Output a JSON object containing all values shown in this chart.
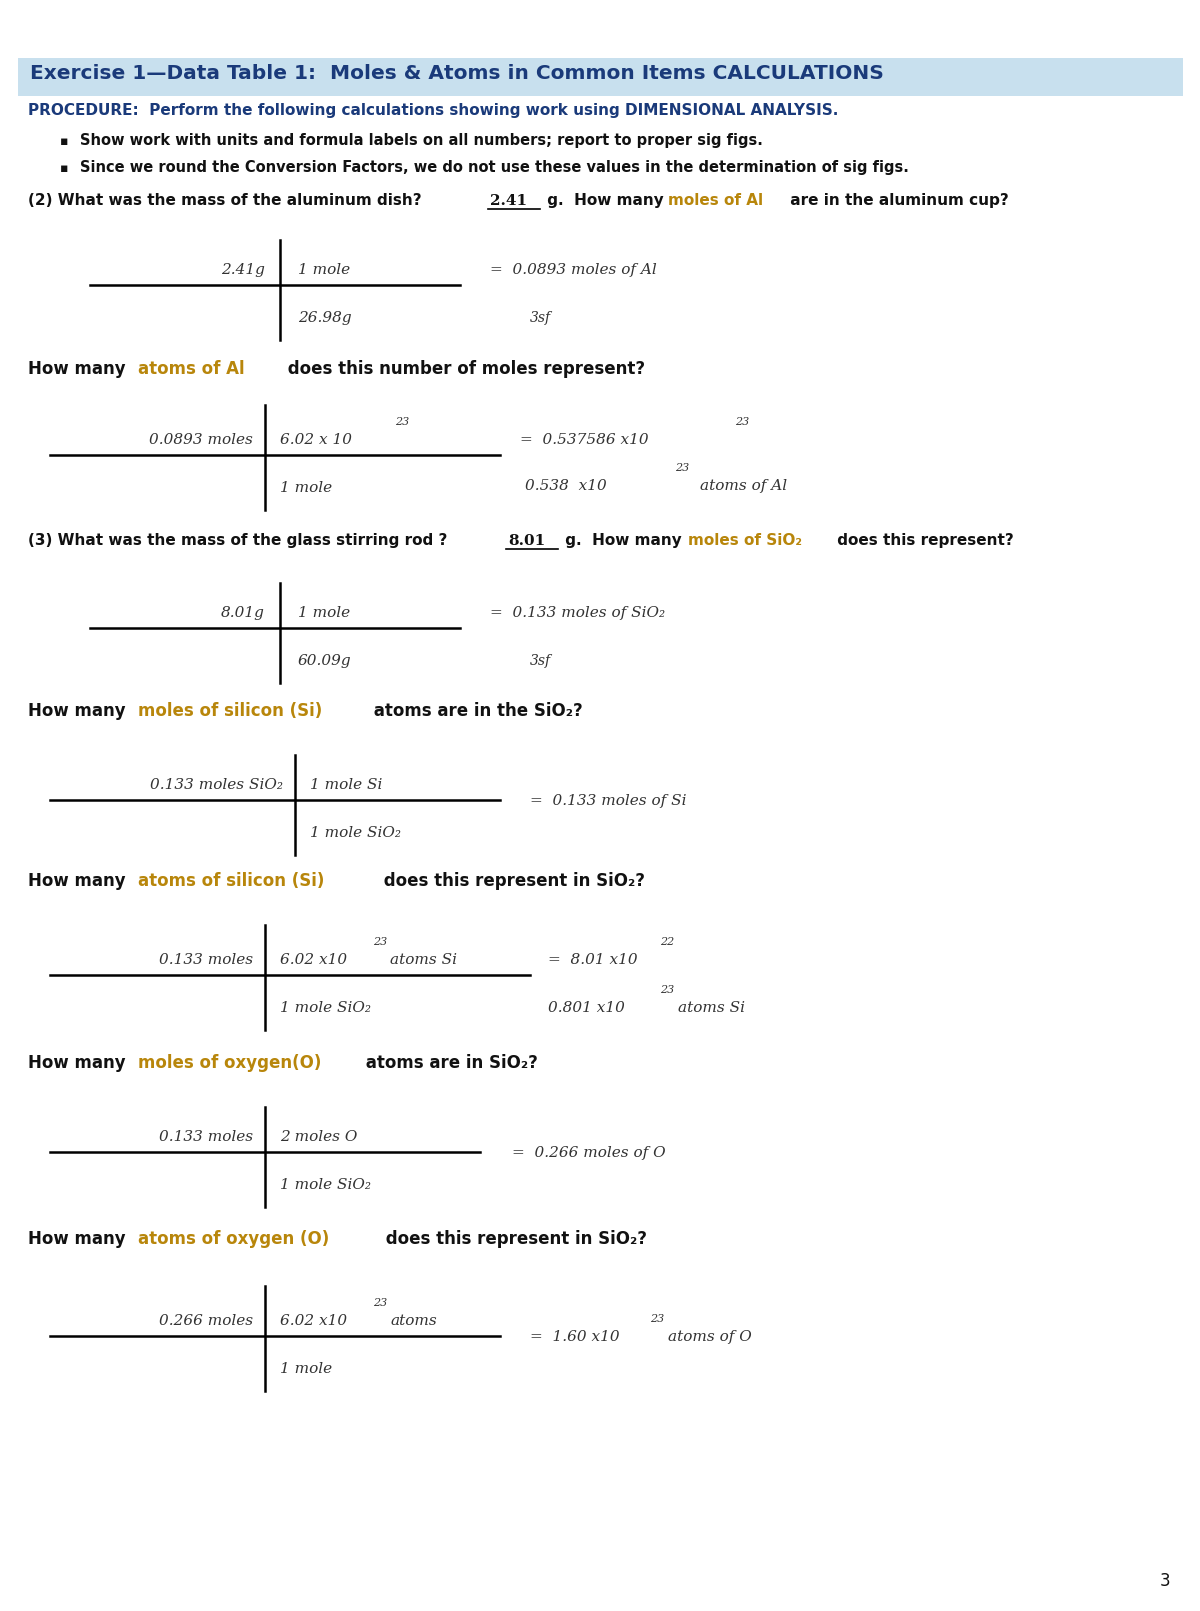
{
  "title": "Exercise 1—Data Table 1:  Moles & Atoms in Common Items CALCULATIONS",
  "title_bg": "#c8e0ee",
  "procedure_line": "PROCEDURE:  Perform the following calculations showing work using DIMENSIONAL ANALYSIS.",
  "bullet1": "Show work with units and formula labels on all numbers; report to proper sig figs.",
  "bullet2": "Since we round the Conversion Factors, we do not use these values in the determination of sig figs.",
  "page_num": "3",
  "bg_color": "#ffffff",
  "blue_color": "#1a3a7a",
  "gold_color": "#b8860b",
  "hw_color": "#333333",
  "black": "#111111"
}
